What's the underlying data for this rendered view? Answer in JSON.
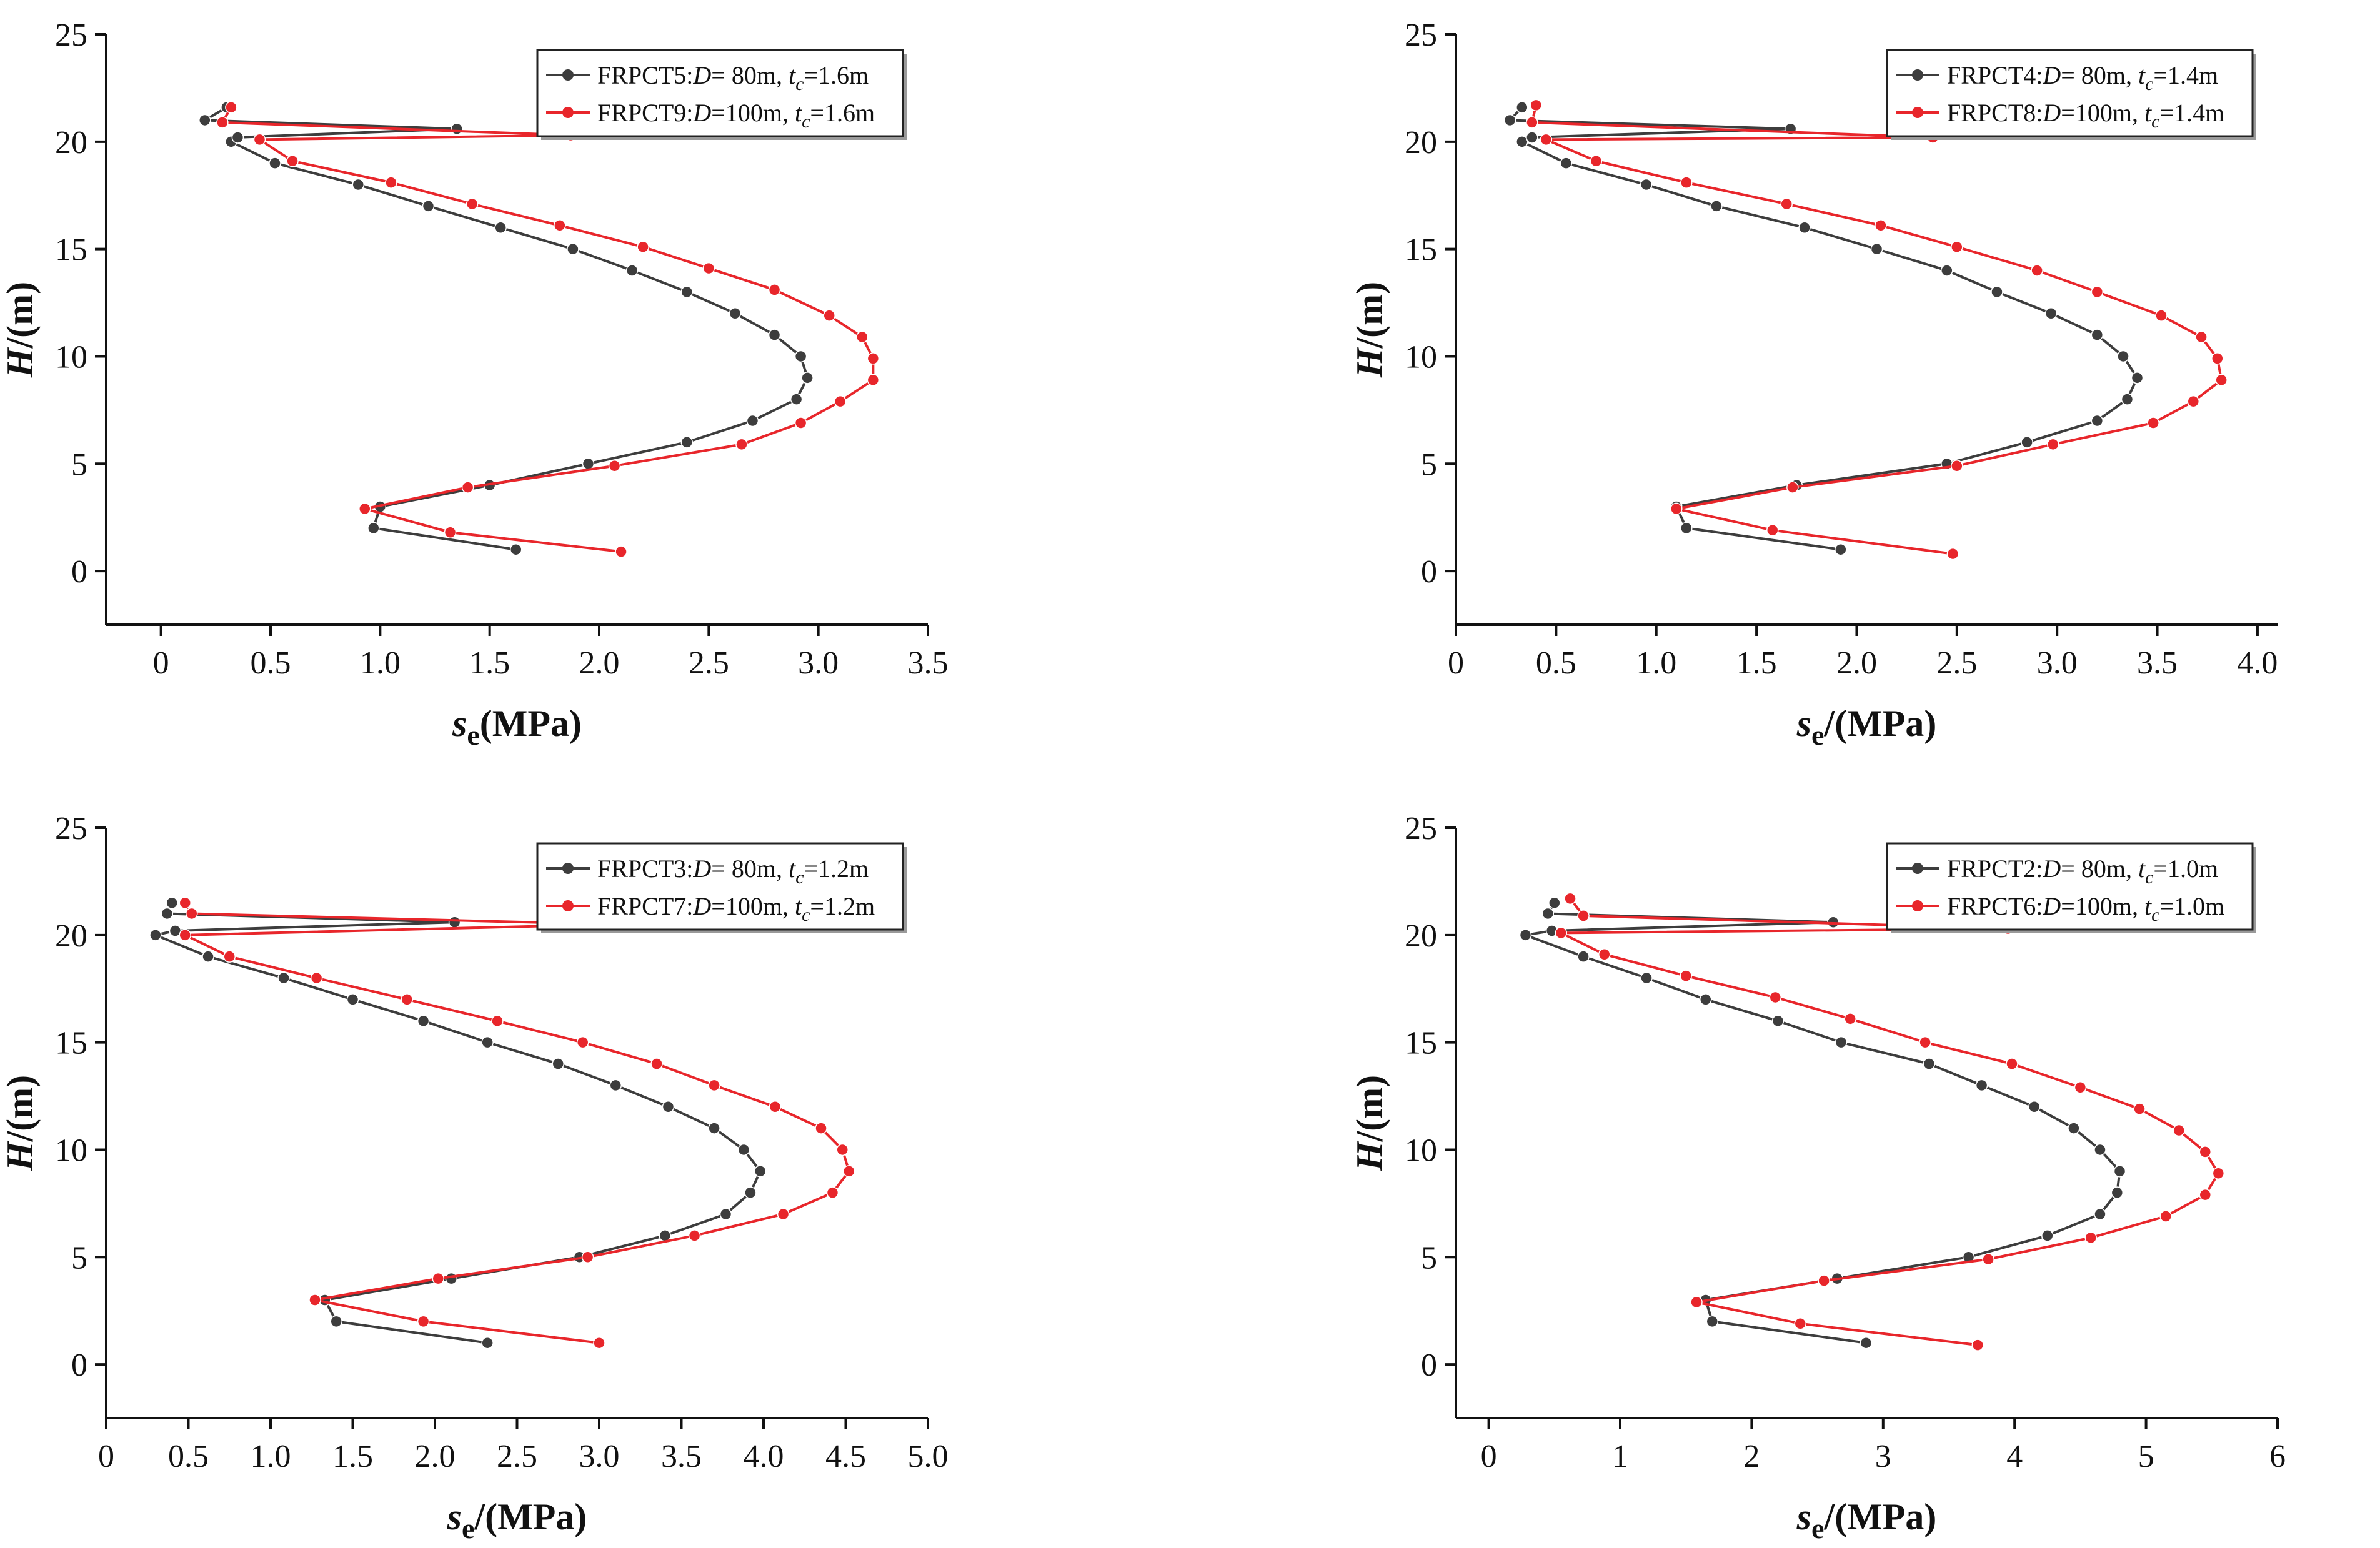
{
  "chart_data": [
    {
      "type": "line",
      "xlabel": {
        "main": "s",
        "sub": "e",
        "rest": "(MPa)"
      },
      "ylabel": {
        "main": "H",
        "rest": "/(m)"
      },
      "xlim": [
        -0.25,
        3.5
      ],
      "xticks": [
        0,
        0.5,
        1.0,
        1.5,
        2.0,
        2.5,
        3.0,
        3.5
      ],
      "xtick_labels": [
        "0",
        "0.5",
        "1.0",
        "1.5",
        "2.0",
        "2.5",
        "3.0",
        "3.5"
      ],
      "ylim": [
        -2.5,
        25
      ],
      "yticks": [
        0,
        5,
        10,
        15,
        20,
        25
      ],
      "ytick_labels": [
        "0",
        "5",
        "10",
        "15",
        "20",
        "25"
      ],
      "series": [
        {
          "name": "FRPCT5",
          "legend": {
            "name": "FRPCT5:",
            "d_label": "D",
            "d_value": "= 80m, ",
            "t_label": "t",
            "t_sub": "c",
            "t_value": "=1.6m"
          },
          "color": "#3d3d3d",
          "points": [
            [
              1.62,
              1
            ],
            [
              0.97,
              2
            ],
            [
              1.0,
              3
            ],
            [
              1.5,
              4
            ],
            [
              1.95,
              5
            ],
            [
              2.4,
              6
            ],
            [
              2.7,
              7
            ],
            [
              2.9,
              8
            ],
            [
              2.95,
              9
            ],
            [
              2.92,
              10
            ],
            [
              2.8,
              11
            ],
            [
              2.62,
              12
            ],
            [
              2.4,
              13
            ],
            [
              2.15,
              14
            ],
            [
              1.88,
              15
            ],
            [
              1.55,
              16
            ],
            [
              1.22,
              17
            ],
            [
              0.9,
              18
            ],
            [
              0.52,
              19
            ],
            [
              0.32,
              20
            ],
            [
              0.35,
              20.2
            ],
            [
              1.35,
              20.6
            ],
            [
              0.2,
              21
            ],
            [
              0.3,
              21.6
            ]
          ]
        },
        {
          "name": "FRPCT9",
          "legend": {
            "name": "FRPCT9:",
            "d_label": "D",
            "d_value": "=100m, ",
            "t_label": "t",
            "t_sub": "c",
            "t_value": "=1.6m"
          },
          "color": "#e8262b",
          "points": [
            [
              2.1,
              0.9
            ],
            [
              1.32,
              1.8
            ],
            [
              0.93,
              2.9
            ],
            [
              1.4,
              3.9
            ],
            [
              2.07,
              4.9
            ],
            [
              2.65,
              5.9
            ],
            [
              2.92,
              6.9
            ],
            [
              3.1,
              7.9
            ],
            [
              3.25,
              8.9
            ],
            [
              3.25,
              9.9
            ],
            [
              3.2,
              10.9
            ],
            [
              3.05,
              11.9
            ],
            [
              2.8,
              13.1
            ],
            [
              2.5,
              14.1
            ],
            [
              2.2,
              15.1
            ],
            [
              1.82,
              16.1
            ],
            [
              1.42,
              17.1
            ],
            [
              1.05,
              18.1
            ],
            [
              0.6,
              19.1
            ],
            [
              0.45,
              20.1
            ],
            [
              1.87,
              20.3
            ],
            [
              0.28,
              20.9
            ],
            [
              0.32,
              21.6
            ]
          ]
        }
      ]
    },
    {
      "type": "line",
      "xlabel": {
        "main": "s",
        "sub": "e",
        "rest": "/(MPa)"
      },
      "ylabel": {
        "main": "H",
        "rest": "/(m)"
      },
      "xlim": [
        0,
        4.1
      ],
      "xticks": [
        0,
        0.5,
        1.0,
        1.5,
        2.0,
        2.5,
        3.0,
        3.5,
        4.0
      ],
      "xtick_labels": [
        "0",
        "0.5",
        "1.0",
        "1.5",
        "2.0",
        "2.5",
        "3.0",
        "3.5",
        "4.0"
      ],
      "ylim": [
        -2.5,
        25
      ],
      "yticks": [
        0,
        5,
        10,
        15,
        20,
        25
      ],
      "ytick_labels": [
        "0",
        "5",
        "10",
        "15",
        "20",
        "25"
      ],
      "series": [
        {
          "name": "FRPCT4",
          "legend": {
            "name": "FRPCT4:",
            "d_label": "D",
            "d_value": "= 80m, ",
            "t_label": "t",
            "t_sub": "c",
            "t_value": "=1.4m"
          },
          "color": "#3d3d3d",
          "points": [
            [
              1.92,
              1
            ],
            [
              1.15,
              2
            ],
            [
              1.1,
              3
            ],
            [
              1.7,
              4
            ],
            [
              2.45,
              5
            ],
            [
              2.85,
              6
            ],
            [
              3.2,
              7
            ],
            [
              3.35,
              8
            ],
            [
              3.4,
              9
            ],
            [
              3.33,
              10
            ],
            [
              3.2,
              11
            ],
            [
              2.97,
              12
            ],
            [
              2.7,
              13
            ],
            [
              2.45,
              14
            ],
            [
              2.1,
              15
            ],
            [
              1.74,
              16
            ],
            [
              1.3,
              17
            ],
            [
              0.95,
              18
            ],
            [
              0.55,
              19
            ],
            [
              0.33,
              20
            ],
            [
              0.38,
              20.2
            ],
            [
              1.67,
              20.6
            ],
            [
              0.27,
              21
            ],
            [
              0.33,
              21.6
            ]
          ]
        },
        {
          "name": "FRPCT8",
          "legend": {
            "name": "FRPCT8:",
            "d_label": "D",
            "d_value": "=100m, ",
            "t_label": "t",
            "t_sub": "c",
            "t_value": "=1.4m"
          },
          "color": "#e8262b",
          "points": [
            [
              2.48,
              0.8
            ],
            [
              1.58,
              1.9
            ],
            [
              1.1,
              2.9
            ],
            [
              1.68,
              3.9
            ],
            [
              2.5,
              4.9
            ],
            [
              2.98,
              5.9
            ],
            [
              3.48,
              6.9
            ],
            [
              3.68,
              7.9
            ],
            [
              3.82,
              8.9
            ],
            [
              3.8,
              9.9
            ],
            [
              3.72,
              10.9
            ],
            [
              3.52,
              11.9
            ],
            [
              3.2,
              13.0
            ],
            [
              2.9,
              14.0
            ],
            [
              2.5,
              15.1
            ],
            [
              2.12,
              16.1
            ],
            [
              1.65,
              17.1
            ],
            [
              1.15,
              18.1
            ],
            [
              0.7,
              19.1
            ],
            [
              0.45,
              20.1
            ],
            [
              2.38,
              20.2
            ],
            [
              0.38,
              20.9
            ],
            [
              0.4,
              21.7
            ]
          ]
        }
      ]
    },
    {
      "type": "line",
      "xlabel": {
        "main": "s",
        "sub": "e",
        "rest": "/(MPa)"
      },
      "ylabel": {
        "main": "H",
        "rest": "/(m)"
      },
      "xlim": [
        0,
        5.0
      ],
      "xticks": [
        0,
        0.5,
        1.0,
        1.5,
        2.0,
        2.5,
        3.0,
        3.5,
        4.0,
        4.5,
        5.0
      ],
      "xtick_labels": [
        "0",
        "0.5",
        "1.0",
        "1.5",
        "2.0",
        "2.5",
        "3.0",
        "3.5",
        "4.0",
        "4.5",
        "5.0"
      ],
      "ylim": [
        -2.5,
        25
      ],
      "yticks": [
        0,
        5,
        10,
        15,
        20,
        25
      ],
      "ytick_labels": [
        "0",
        "5",
        "10",
        "15",
        "20",
        "25"
      ],
      "series": [
        {
          "name": "FRPCT3",
          "legend": {
            "name": "FRPCT3:",
            "d_label": "D",
            "d_value": "= 80m, ",
            "t_label": "t",
            "t_sub": "c",
            "t_value": "=1.2m"
          },
          "color": "#3d3d3d",
          "points": [
            [
              2.32,
              1
            ],
            [
              1.4,
              2
            ],
            [
              1.33,
              3
            ],
            [
              2.1,
              4
            ],
            [
              2.88,
              5
            ],
            [
              3.4,
              6
            ],
            [
              3.77,
              7
            ],
            [
              3.92,
              8
            ],
            [
              3.98,
              9
            ],
            [
              3.88,
              10
            ],
            [
              3.7,
              11
            ],
            [
              3.42,
              12
            ],
            [
              3.1,
              13
            ],
            [
              2.75,
              14
            ],
            [
              2.32,
              15
            ],
            [
              1.93,
              16
            ],
            [
              1.5,
              17
            ],
            [
              1.08,
              18
            ],
            [
              0.62,
              19
            ],
            [
              0.3,
              20
            ],
            [
              0.42,
              20.2
            ],
            [
              2.12,
              20.6
            ],
            [
              0.37,
              21
            ],
            [
              0.4,
              21.5
            ]
          ]
        },
        {
          "name": "FRPCT7",
          "legend": {
            "name": "FRPCT7:",
            "d_label": "D",
            "d_value": "=100m, ",
            "t_label": "t",
            "t_sub": "c",
            "t_value": "=1.2m"
          },
          "color": "#e8262b",
          "points": [
            [
              3.0,
              1
            ],
            [
              1.93,
              2
            ],
            [
              1.27,
              3
            ],
            [
              2.02,
              4
            ],
            [
              2.93,
              5
            ],
            [
              3.58,
              6
            ],
            [
              4.12,
              7
            ],
            [
              4.42,
              8
            ],
            [
              4.52,
              9
            ],
            [
              4.48,
              10
            ],
            [
              4.35,
              11
            ],
            [
              4.07,
              12
            ],
            [
              3.7,
              13
            ],
            [
              3.35,
              14
            ],
            [
              2.9,
              15
            ],
            [
              2.38,
              16
            ],
            [
              1.83,
              17
            ],
            [
              1.28,
              18
            ],
            [
              0.75,
              19
            ],
            [
              0.48,
              20
            ],
            [
              3.07,
              20.5
            ],
            [
              0.52,
              21
            ],
            [
              0.48,
              21.5
            ]
          ]
        }
      ]
    },
    {
      "type": "line",
      "xlabel": {
        "main": "s",
        "sub": "e",
        "rest": "/(MPa)"
      },
      "ylabel": {
        "main": "H",
        "rest": "/(m)"
      },
      "xlim": [
        -0.25,
        6
      ],
      "xticks": [
        0,
        1,
        2,
        3,
        4,
        5,
        6
      ],
      "xtick_labels": [
        "0",
        "1",
        "2",
        "3",
        "4",
        "5",
        "6"
      ],
      "ylim": [
        -2.5,
        25
      ],
      "yticks": [
        0,
        5,
        10,
        15,
        20,
        25
      ],
      "ytick_labels": [
        "0",
        "5",
        "10",
        "15",
        "20",
        "25"
      ],
      "series": [
        {
          "name": "FRPCT2",
          "legend": {
            "name": "FRPCT2:",
            "d_label": "D",
            "d_value": "= 80m, ",
            "t_label": "t",
            "t_sub": "c",
            "t_value": "=1.0m"
          },
          "color": "#3d3d3d",
          "points": [
            [
              2.87,
              1
            ],
            [
              1.7,
              2
            ],
            [
              1.65,
              3
            ],
            [
              2.65,
              4
            ],
            [
              3.65,
              5
            ],
            [
              4.25,
              6
            ],
            [
              4.65,
              7
            ],
            [
              4.78,
              8
            ],
            [
              4.8,
              9
            ],
            [
              4.65,
              10
            ],
            [
              4.45,
              11
            ],
            [
              4.15,
              12
            ],
            [
              3.75,
              13
            ],
            [
              3.35,
              14
            ],
            [
              2.68,
              15
            ],
            [
              2.2,
              16
            ],
            [
              1.65,
              17
            ],
            [
              1.2,
              18
            ],
            [
              0.72,
              19
            ],
            [
              0.28,
              20
            ],
            [
              0.48,
              20.2
            ],
            [
              2.62,
              20.6
            ],
            [
              0.45,
              21
            ],
            [
              0.5,
              21.5
            ]
          ]
        },
        {
          "name": "FRPCT6",
          "legend": {
            "name": "FRPCT6:",
            "d_label": "D",
            "d_value": "=100m, ",
            "t_label": "t",
            "t_sub": "c",
            "t_value": "=1.0m"
          },
          "color": "#e8262b",
          "points": [
            [
              3.72,
              0.9
            ],
            [
              2.37,
              1.9
            ],
            [
              1.58,
              2.9
            ],
            [
              2.55,
              3.9
            ],
            [
              3.8,
              4.9
            ],
            [
              4.58,
              5.9
            ],
            [
              5.15,
              6.9
            ],
            [
              5.45,
              7.9
            ],
            [
              5.55,
              8.9
            ],
            [
              5.45,
              9.9
            ],
            [
              5.25,
              10.9
            ],
            [
              4.95,
              11.9
            ],
            [
              4.5,
              12.9
            ],
            [
              3.98,
              14.0
            ],
            [
              3.32,
              15.0
            ],
            [
              2.75,
              16.1
            ],
            [
              2.18,
              17.1
            ],
            [
              1.5,
              18.1
            ],
            [
              0.88,
              19.1
            ],
            [
              0.55,
              20.1
            ],
            [
              3.95,
              20.3
            ],
            [
              0.72,
              20.9
            ],
            [
              0.62,
              21.7
            ]
          ]
        }
      ]
    }
  ]
}
